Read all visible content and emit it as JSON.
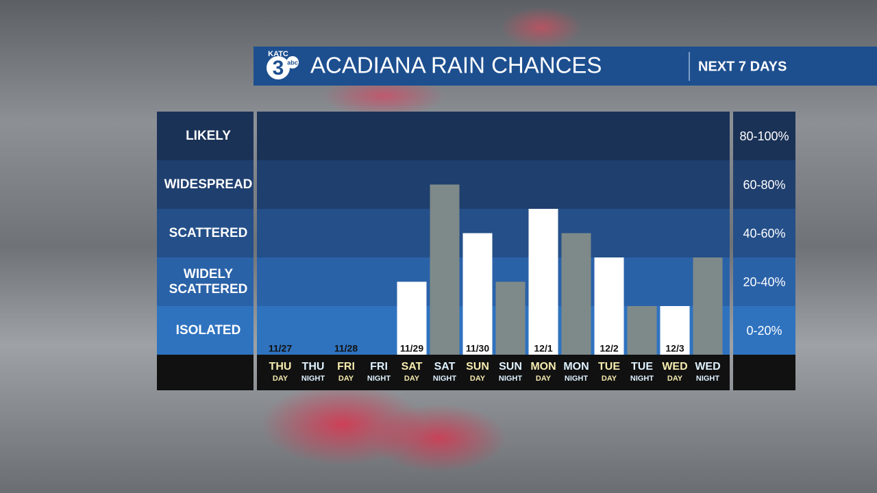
{
  "logo": {
    "station": "KATC",
    "channel": "3",
    "network": "abc"
  },
  "chart_data": {
    "type": "bar",
    "title": "ACADIANA RAIN CHANCES",
    "subtitle": "NEXT 7 DAYS",
    "categories": [
      "THU",
      "THU",
      "FRI",
      "FRI",
      "SAT",
      "SAT",
      "SUN",
      "SUN",
      "MON",
      "MON",
      "TUE",
      "TUE",
      "WED",
      "WED"
    ],
    "sublabels": [
      "DAY",
      "NIGHT",
      "DAY",
      "NIGHT",
      "DAY",
      "NIGHT",
      "DAY",
      "NIGHT",
      "DAY",
      "NIGHT",
      "DAY",
      "NIGHT",
      "DAY",
      "NIGHT"
    ],
    "dates": [
      "11/27",
      null,
      "11/28",
      null,
      "11/29",
      null,
      "11/30",
      null,
      "12/1",
      null,
      "12/2",
      null,
      "12/3",
      null
    ],
    "values": [
      0,
      0,
      0,
      0,
      30,
      70,
      50,
      30,
      60,
      50,
      40,
      20,
      20,
      40
    ],
    "bar_colors": [
      "#ffffff",
      "#7e8a89",
      "#ffffff",
      "#7e8a89",
      "#ffffff",
      "#7e8a89",
      "#ffffff",
      "#7e8a89",
      "#ffffff",
      "#7e8a89",
      "#ffffff",
      "#7e8a89",
      "#ffffff",
      "#7e8a89"
    ],
    "label_colors": [
      "#f6ecb0",
      "#dff2ff",
      "#f6ecb0",
      "#dff2ff",
      "#f6ecb0",
      "#dff2ff",
      "#f6ecb0",
      "#dff2ff",
      "#f6ecb0",
      "#dff2ff",
      "#f6ecb0",
      "#dff2ff",
      "#f6ecb0",
      "#dff2ff"
    ],
    "ylim": [
      0,
      100
    ],
    "bands": [
      {
        "name": "LIKELY",
        "range": "80-100%",
        "low": 80,
        "high": 100,
        "color": "#1b3257"
      },
      {
        "name": "WIDESPREAD",
        "range": "60-80%",
        "low": 60,
        "high": 80,
        "color": "#1f3f6f"
      },
      {
        "name": "SCATTERED",
        "range": "40-60%",
        "low": 40,
        "high": 60,
        "color": "#244f89"
      },
      {
        "name": "WIDELY SCATTERED",
        "range": "20-40%",
        "low": 20,
        "high": 40,
        "color": "#2a62a8"
      },
      {
        "name": "ISOLATED",
        "range": "0-20%",
        "low": 0,
        "high": 20,
        "color": "#2f73bf"
      }
    ]
  }
}
